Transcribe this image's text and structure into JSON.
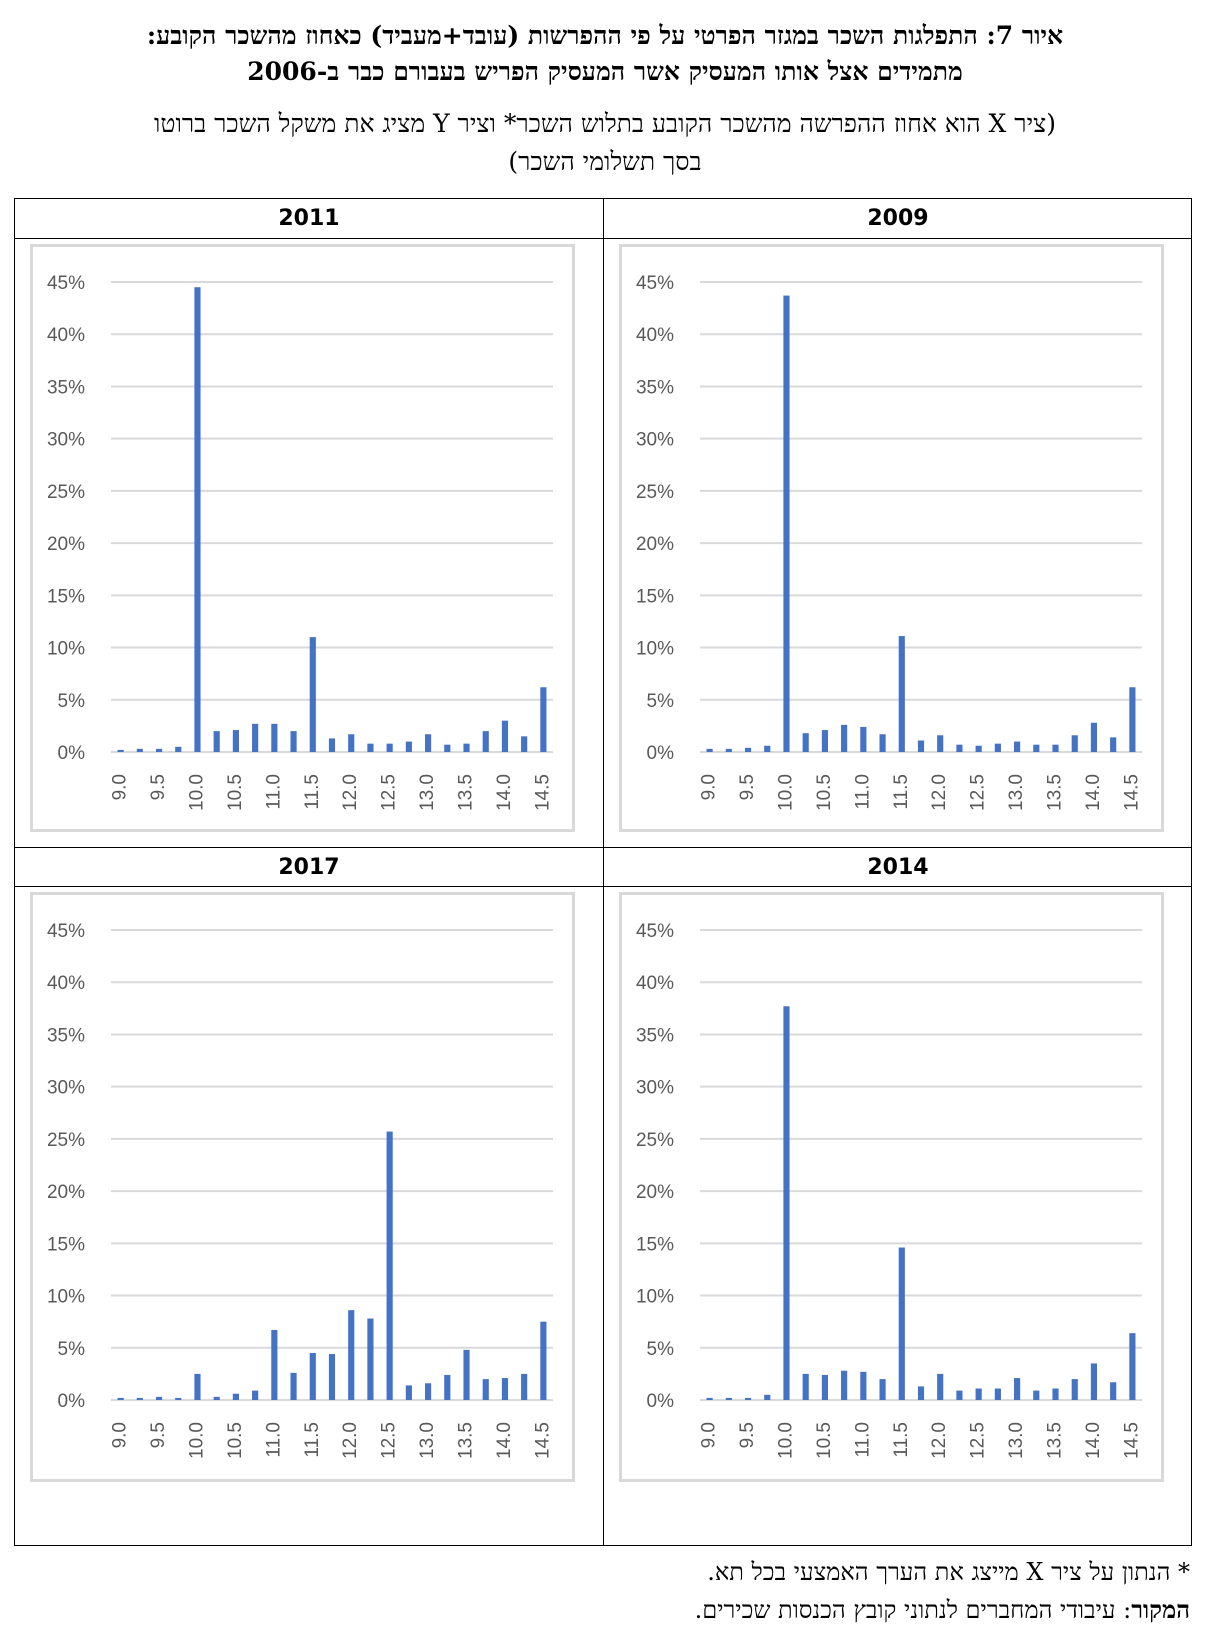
{
  "header": {
    "title_line1": "איור 7: התפלגות השכר במגזר הפרטי על פי ההפרשות (עובד+מעביד) כאחוז מהשכר הקובע:",
    "title_line2": "מתמידים אצל אותו המעסיק אשר המעסיק הפריש בעבורם כבר ב-2006",
    "subtitle_line1": "(ציר X הוא אחוז ההפרשה מהשכר הקובע בתלוש השכר* וציר Y מציג את משקל השכר ברוטו",
    "subtitle_line2": "בסך תשלומי השכר)"
  },
  "footer": {
    "note": "* הנתון על ציר X מייצג את הערך האמצעי בכל תא.",
    "source_label": "המקור",
    "source_text": ": עיבודי המחברים לנתוני קובץ הכנסות שכירים."
  },
  "colors": {
    "bar": "#4472c4",
    "gridline": "#d9d9d9",
    "tick_text": "#595959",
    "chart_border": "#d9d9d9"
  },
  "chart_data": [
    {
      "type": "bar",
      "title": "2011",
      "x": [
        9.0,
        9.25,
        9.5,
        9.75,
        10.0,
        10.25,
        10.5,
        10.75,
        11.0,
        11.25,
        11.5,
        11.75,
        12.0,
        12.25,
        12.5,
        12.75,
        13.0,
        13.25,
        13.5,
        13.75,
        14.0,
        14.25,
        14.5
      ],
      "xtick_labels": [
        "9.0",
        "9.5",
        "10.0",
        "10.5",
        "11.0",
        "11.5",
        "12.0",
        "12.5",
        "13.0",
        "13.5",
        "14.0",
        "14.5"
      ],
      "values": [
        0.2,
        0.3,
        0.3,
        0.5,
        44.5,
        2.0,
        2.1,
        2.7,
        2.7,
        2.0,
        11.0,
        1.3,
        1.7,
        0.8,
        0.8,
        1.0,
        1.7,
        0.7,
        0.8,
        2.0,
        3.0,
        1.5,
        6.2
      ],
      "ylim": [
        0,
        45
      ],
      "yticks": [
        "0%",
        "5%",
        "10%",
        "15%",
        "20%",
        "25%",
        "30%",
        "35%",
        "40%",
        "45%"
      ],
      "grid": true
    },
    {
      "type": "bar",
      "title": "2009",
      "x": [
        9.0,
        9.25,
        9.5,
        9.75,
        10.0,
        10.25,
        10.5,
        10.75,
        11.0,
        11.25,
        11.5,
        11.75,
        12.0,
        12.25,
        12.5,
        12.75,
        13.0,
        13.25,
        13.5,
        13.75,
        14.0,
        14.25,
        14.5
      ],
      "xtick_labels": [
        "9.0",
        "9.5",
        "10.0",
        "10.5",
        "11.0",
        "11.5",
        "12.0",
        "12.5",
        "13.0",
        "13.5",
        "14.0",
        "14.5"
      ],
      "values": [
        0.3,
        0.3,
        0.4,
        0.6,
        43.7,
        1.8,
        2.1,
        2.6,
        2.4,
        1.7,
        11.1,
        1.1,
        1.6,
        0.7,
        0.6,
        0.8,
        1.0,
        0.7,
        0.7,
        1.6,
        2.8,
        1.4,
        6.2
      ],
      "ylim": [
        0,
        45
      ],
      "yticks": [
        "0%",
        "5%",
        "10%",
        "15%",
        "20%",
        "25%",
        "30%",
        "35%",
        "40%",
        "45%"
      ],
      "grid": true
    },
    {
      "type": "bar",
      "title": "2017",
      "x": [
        9.0,
        9.25,
        9.5,
        9.75,
        10.0,
        10.25,
        10.5,
        10.75,
        11.0,
        11.25,
        11.5,
        11.75,
        12.0,
        12.25,
        12.5,
        12.75,
        13.0,
        13.25,
        13.5,
        13.75,
        14.0,
        14.25,
        14.5
      ],
      "xtick_labels": [
        "9.0",
        "9.5",
        "10.0",
        "10.5",
        "11.0",
        "11.5",
        "12.0",
        "12.5",
        "13.0",
        "13.5",
        "14.0",
        "14.5"
      ],
      "values": [
        0.2,
        0.2,
        0.3,
        0.2,
        2.5,
        0.3,
        0.6,
        0.9,
        6.7,
        2.6,
        4.5,
        4.4,
        8.6,
        7.8,
        25.7,
        1.4,
        1.6,
        2.4,
        4.8,
        2.0,
        2.1,
        2.5,
        7.5
      ],
      "ylim": [
        0,
        45
      ],
      "yticks": [
        "0%",
        "5%",
        "10%",
        "15%",
        "20%",
        "25%",
        "30%",
        "35%",
        "40%",
        "45%"
      ],
      "grid": true
    },
    {
      "type": "bar",
      "title": "2014",
      "x": [
        9.0,
        9.25,
        9.5,
        9.75,
        10.0,
        10.25,
        10.5,
        10.75,
        11.0,
        11.25,
        11.5,
        11.75,
        12.0,
        12.25,
        12.5,
        12.75,
        13.0,
        13.25,
        13.5,
        13.75,
        14.0,
        14.25,
        14.5
      ],
      "xtick_labels": [
        "9.0",
        "9.5",
        "10.0",
        "10.5",
        "11.0",
        "11.5",
        "12.0",
        "12.5",
        "13.0",
        "13.5",
        "14.0",
        "14.5"
      ],
      "values": [
        0.2,
        0.2,
        0.2,
        0.5,
        37.7,
        2.5,
        2.4,
        2.8,
        2.7,
        2.0,
        14.6,
        1.3,
        2.5,
        0.9,
        1.1,
        1.1,
        2.1,
        0.9,
        1.1,
        2.0,
        3.5,
        1.7,
        6.4
      ],
      "ylim": [
        0,
        45
      ],
      "yticks": [
        "0%",
        "5%",
        "10%",
        "15%",
        "20%",
        "25%",
        "30%",
        "35%",
        "40%",
        "45%"
      ],
      "grid": true
    }
  ]
}
